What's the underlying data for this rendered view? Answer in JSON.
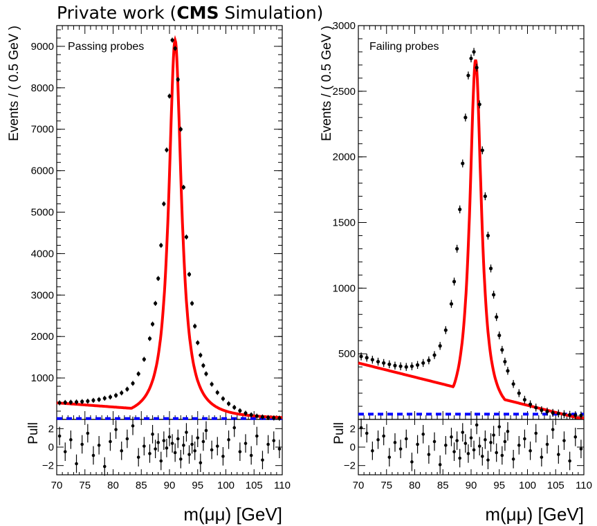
{
  "header": {
    "prefix": "Private work (",
    "bold": "CMS",
    "suffix": " Simulation)"
  },
  "chart_data": [
    {
      "type": "scatter",
      "annotation": "Passing probes",
      "xlabel": "m(μμ) [GeV]",
      "ylabel": "Events / ( 0.5 GeV )",
      "xlim": [
        70,
        110
      ],
      "ylim": [
        0,
        9500
      ],
      "x_ticks": [
        70,
        75,
        80,
        85,
        90,
        95,
        100,
        105,
        110
      ],
      "y_ticks": [
        1000,
        2000,
        3000,
        4000,
        5000,
        6000,
        7000,
        8000,
        9000
      ],
      "series": [
        {
          "kind": "data-points",
          "x": [
            70.5,
            71.5,
            72.5,
            73.5,
            74.5,
            75.5,
            76.5,
            77.5,
            78.5,
            79.5,
            80.5,
            81.5,
            82.5,
            83.5,
            84.5,
            85.5,
            86.5,
            87.0,
            87.5,
            88.0,
            88.5,
            89.0,
            89.5,
            90.0,
            90.5,
            91.0,
            91.5,
            92.0,
            92.5,
            93.0,
            93.5,
            94.0,
            94.5,
            95.0,
            95.5,
            96.0,
            96.5,
            97.5,
            98.5,
            99.5,
            100.5,
            101.5,
            102.5,
            103.5,
            104.5,
            105.5,
            106.5,
            107.5,
            108.5,
            109.5
          ],
          "y": [
            400,
            410,
            415,
            420,
            430,
            440,
            460,
            480,
            510,
            540,
            580,
            640,
            730,
            870,
            1100,
            1450,
            1950,
            2300,
            2800,
            3400,
            4200,
            5200,
            6500,
            7800,
            9150,
            8950,
            8200,
            7000,
            5600,
            4400,
            3500,
            2800,
            2250,
            1850,
            1550,
            1300,
            1100,
            850,
            650,
            500,
            380,
            290,
            210,
            150,
            110,
            80,
            60,
            45,
            35,
            30
          ],
          "yerr": 60
        },
        {
          "kind": "fit-curve",
          "color": "#ff0000",
          "peak": 91.0,
          "amplitude": 9150,
          "width": 1.35,
          "baseline": 400
        },
        {
          "kind": "background",
          "color": "#0000ff",
          "level": 20
        }
      ],
      "pull": {
        "ylabel": "Pull",
        "ylim": [
          -3,
          3
        ],
        "y_ticks": [
          -2,
          0,
          2
        ],
        "values": [
          1.2,
          -0.5,
          0.8,
          -1.8,
          0.3,
          1.5,
          -0.9,
          0.2,
          -2.1,
          0.6,
          1.9,
          -0.4,
          0.9,
          2.3,
          -1.1,
          0.1,
          -0.7,
          1.4,
          -0.2,
          0.5,
          -1.5,
          0.7,
          -0.1,
          1.1,
          0.4,
          -0.6,
          0.9,
          -1.3,
          0.2,
          1.6,
          -0.8,
          0.3,
          -0.4,
          1.0,
          -1.7,
          0.6,
          1.8,
          -0.3,
          0.1,
          -1.0,
          0.8,
          2.1,
          -0.5,
          0.4,
          -0.9,
          1.2,
          -1.4,
          0.3,
          0.7,
          -0.2
        ]
      }
    },
    {
      "type": "scatter",
      "annotation": "Failing probes",
      "xlabel": "m(μμ) [GeV]",
      "ylabel": "Events / ( 0.5 GeV )",
      "xlim": [
        70,
        110
      ],
      "ylim": [
        0,
        3000
      ],
      "x_ticks": [
        70,
        75,
        80,
        85,
        90,
        95,
        100,
        105,
        110
      ],
      "y_ticks": [
        500,
        1000,
        1500,
        2000,
        2500,
        3000
      ],
      "series": [
        {
          "kind": "data-points",
          "x": [
            70.5,
            71.5,
            72.5,
            73.5,
            74.5,
            75.5,
            76.5,
            77.5,
            78.5,
            79.5,
            80.5,
            81.5,
            82.5,
            83.5,
            84.5,
            85.5,
            86.5,
            87.0,
            87.5,
            88.0,
            88.5,
            89.0,
            89.5,
            90.0,
            90.5,
            91.0,
            91.5,
            92.0,
            92.5,
            93.0,
            93.5,
            94.0,
            94.5,
            95.0,
            95.5,
            96.0,
            96.5,
            97.5,
            98.5,
            99.5,
            100.5,
            101.5,
            102.5,
            103.5,
            104.5,
            105.5,
            106.5,
            107.5,
            108.5,
            109.5
          ],
          "y": [
            480,
            470,
            455,
            440,
            430,
            420,
            410,
            405,
            400,
            405,
            415,
            430,
            450,
            490,
            560,
            680,
            880,
            1050,
            1300,
            1600,
            1950,
            2300,
            2620,
            2750,
            2800,
            2680,
            2400,
            2050,
            1700,
            1400,
            1150,
            950,
            780,
            640,
            530,
            440,
            370,
            270,
            200,
            150,
            115,
            90,
            70,
            60,
            50,
            45,
            40,
            35,
            32,
            30
          ],
          "yerr": 30
        },
        {
          "kind": "fit-curve",
          "color": "#ff0000",
          "peak": 90.8,
          "amplitude": 2740,
          "width": 1.25,
          "baseline": 430
        },
        {
          "kind": "background",
          "color": "#0000ff",
          "level": 40
        }
      ],
      "pull": {
        "ylabel": "Pull",
        "ylim": [
          -3,
          3
        ],
        "y_ticks": [
          -2,
          0,
          2
        ],
        "values": [
          2.1,
          1.5,
          -0.4,
          0.8,
          1.2,
          -1.1,
          0.5,
          -0.2,
          0.9,
          -1.6,
          0.3,
          1.4,
          -0.8,
          0.6,
          -1.9,
          0.2,
          1.1,
          -0.5,
          0.7,
          -1.2,
          1.6,
          0.4,
          -0.7,
          1.0,
          -0.3,
          2.4,
          0.1,
          -1.0,
          0.8,
          -1.4,
          0.5,
          1.3,
          -0.6,
          2.2,
          -0.9,
          0.6,
          1.7,
          -1.3,
          0.2,
          0.9,
          -0.4,
          1.5,
          -1.1,
          0.3,
          1.9,
          -0.8,
          0.7,
          -1.5,
          1.1,
          -0.2
        ]
      }
    }
  ]
}
